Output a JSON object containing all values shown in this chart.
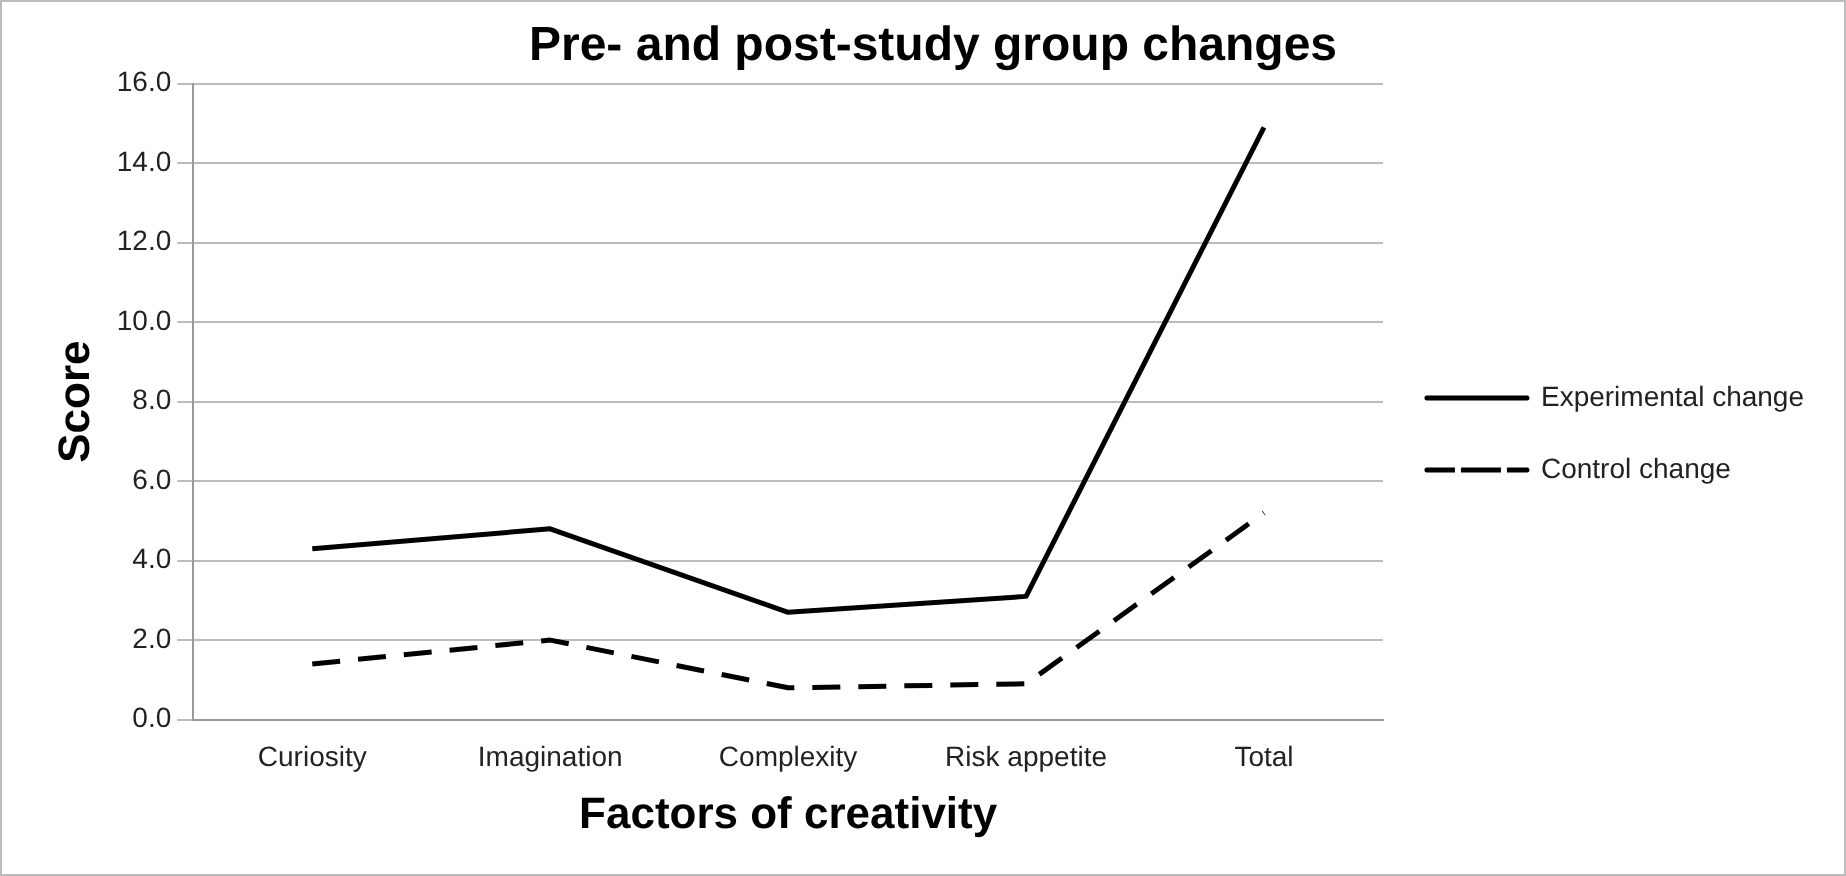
{
  "chart_data": {
    "type": "line",
    "title": "Pre- and post-study group changes",
    "xlabel": "Factors of creativity",
    "ylabel": "Score",
    "categories": [
      "Curiosity",
      "Imagination",
      "Complexity",
      "Risk appetite",
      "Total"
    ],
    "series": [
      {
        "name": "Experimental change",
        "color": "#000000",
        "line_style": "solid",
        "values": [
          4.3,
          4.8,
          2.7,
          3.1,
          14.9
        ]
      },
      {
        "name": "Control change",
        "color": "#000000",
        "line_style": "dashed",
        "values": [
          1.4,
          2.0,
          0.8,
          0.9,
          5.2
        ]
      }
    ],
    "ylim": [
      0,
      16
    ],
    "yticks": [
      {
        "value": 0,
        "label": "0.0"
      },
      {
        "value": 2,
        "label": "2.0"
      },
      {
        "value": 4,
        "label": "4.0"
      },
      {
        "value": 6,
        "label": "6.0"
      },
      {
        "value": 8,
        "label": "8.0"
      },
      {
        "value": 10,
        "label": "10.0"
      },
      {
        "value": 12,
        "label": "12.0"
      },
      {
        "value": 14,
        "label": "14.0"
      },
      {
        "value": 16,
        "label": "16.0"
      }
    ],
    "grid": "y",
    "legend": "right",
    "marker": "none"
  }
}
